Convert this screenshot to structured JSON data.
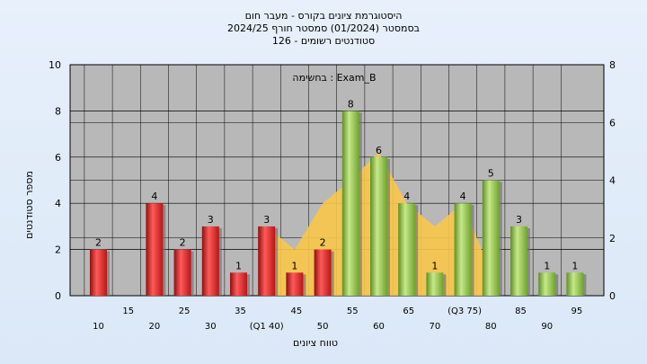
{
  "title_lines": [
    "היסטוגרמת ציונים בקורס - מעבר חום",
    "בסמסטר  (01/2024)  סמסטר חורף 2024/25",
    "סטודנטים רשומים - 126"
  ],
  "legend": "בחשימה : Exam_B",
  "colors": {
    "red_bar": "#d42a2a",
    "green_bar": "#8fc24a",
    "area": "#f8c64a",
    "plot_bg": "#b8b8b8",
    "grid": "#000000"
  },
  "chart_data": {
    "type": "bar",
    "categories": [
      "10",
      "15",
      "20",
      "25",
      "30",
      "35",
      "40",
      "45",
      "50",
      "55",
      "60",
      "65",
      "70",
      "75",
      "80",
      "85",
      "90",
      "95"
    ],
    "category_label_text": [
      "10",
      "15",
      "20",
      "25",
      "30",
      "35",
      "(Q1 40)",
      "45",
      "50",
      "55",
      "60",
      "65",
      "70",
      "(Q3 75)",
      "80",
      "85",
      "90",
      "95"
    ],
    "series": [
      {
        "values": [
          2,
          0,
          4,
          2,
          3,
          1,
          3,
          1,
          2,
          8,
          6,
          4,
          1,
          4,
          5,
          3,
          1,
          1
        ],
        "bar_colors": [
          "red",
          "red",
          "red",
          "red",
          "red",
          "red",
          "red",
          "red",
          "red",
          "green",
          "green",
          "green",
          "green",
          "green",
          "green",
          "green",
          "green",
          "green"
        ],
        "data_labels": [
          "2",
          "",
          "4",
          "2",
          "3",
          "1",
          "3",
          "1",
          "2",
          "8",
          "6",
          "4",
          "1",
          "4",
          "5",
          "3",
          "1",
          "1"
        ]
      }
    ],
    "area_series": {
      "x": [
        "40",
        "45",
        "50",
        "55",
        "60",
        "65",
        "70",
        "75",
        "80"
      ],
      "values": [
        3,
        2,
        4,
        5,
        6.2,
        4,
        3,
        4,
        1
      ]
    },
    "ylabel": "מספר סטודנטים",
    "xlabel": "טווח ציונים",
    "ylim": [
      0,
      10
    ],
    "y_ticks": [
      "0",
      "2",
      "4",
      "6",
      "8",
      "10"
    ],
    "y2lim": [
      0,
      8
    ],
    "y2_ticks": [
      "0",
      "2",
      "4",
      "6",
      "8"
    ],
    "grid": true
  }
}
